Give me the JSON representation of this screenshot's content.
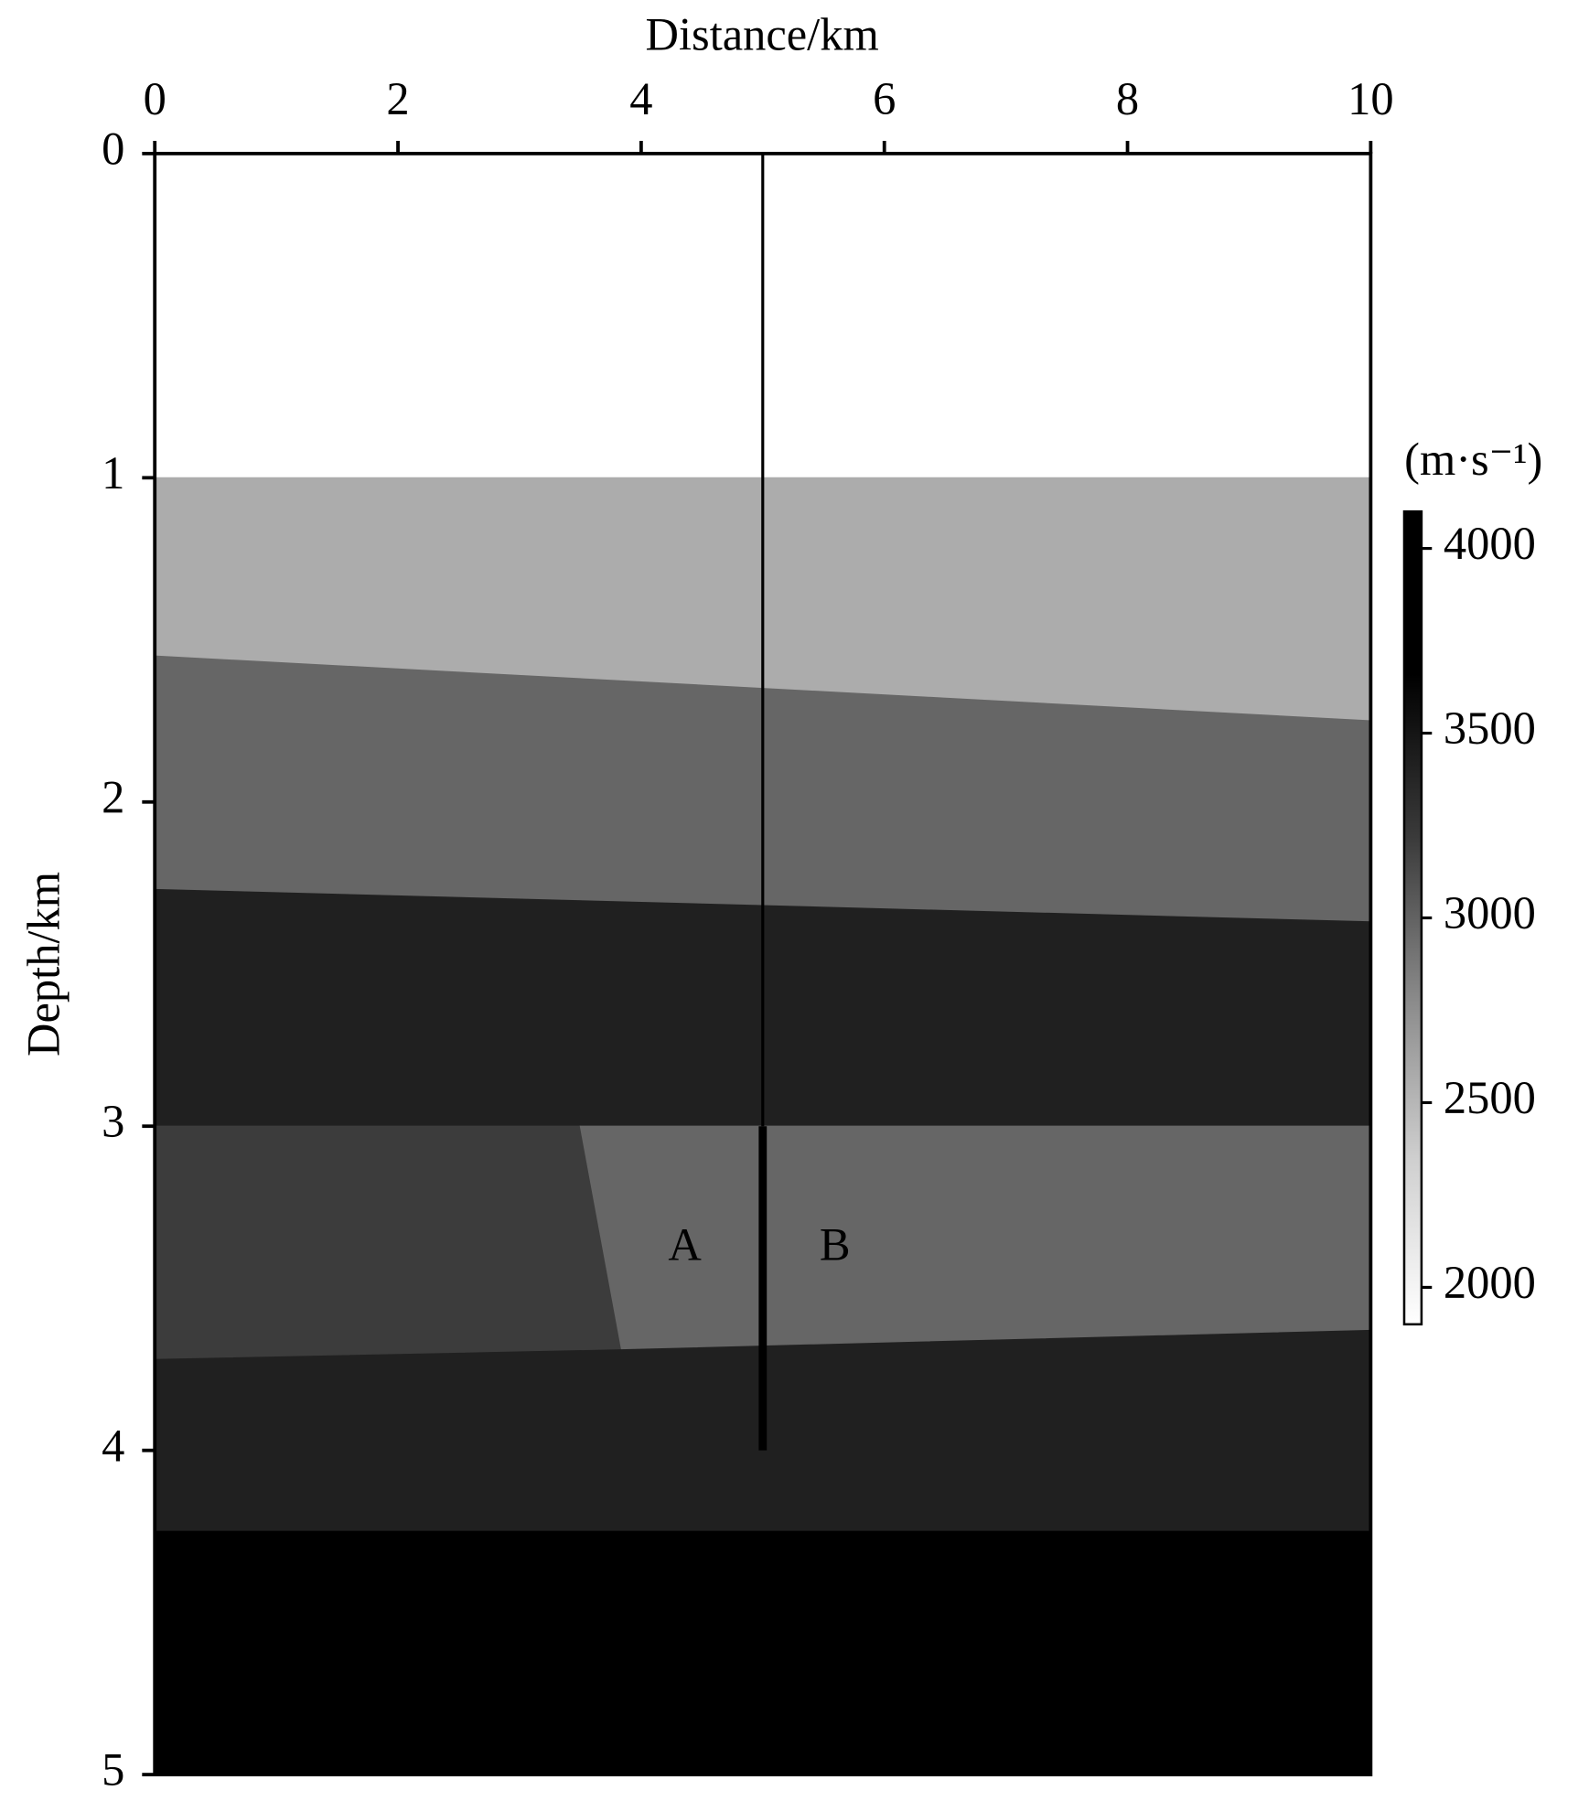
{
  "chart_data": {
    "type": "velocity-model",
    "x_label": "Distance/km",
    "y_label": "Depth/km",
    "xlim": [
      0,
      10
    ],
    "xticks": [
      0,
      2,
      4,
      6,
      8,
      10
    ],
    "ylim": [
      5,
      0
    ],
    "yticks": [
      0,
      1,
      2,
      3,
      4,
      5
    ],
    "layers": [
      {
        "velocity": 2000,
        "color": "#ffffff",
        "outline": [
          [
            0,
            0
          ],
          [
            10,
            0
          ],
          [
            10,
            1
          ],
          [
            0,
            1
          ]
        ]
      },
      {
        "velocity": 2600,
        "color": "#acacac",
        "outline": [
          [
            0,
            1
          ],
          [
            10,
            1
          ],
          [
            10,
            1.75
          ],
          [
            0,
            1.55
          ]
        ]
      },
      {
        "velocity": 3000,
        "color": "#666666",
        "outline": [
          [
            0,
            1.55
          ],
          [
            10,
            1.75
          ],
          [
            10,
            2.37
          ],
          [
            0,
            2.27
          ]
        ]
      },
      {
        "velocity": 3500,
        "color": "#202020",
        "outline": [
          [
            0,
            2.27
          ],
          [
            10,
            2.37
          ],
          [
            10,
            3
          ],
          [
            0,
            3
          ]
        ]
      },
      {
        "velocity": 3200,
        "color": "#3c3c3c",
        "outline": [
          [
            0,
            3
          ],
          [
            3.5,
            3
          ],
          [
            3.84,
            3.69
          ],
          [
            0,
            3.72
          ]
        ]
      },
      {
        "velocity": 3000,
        "color": "#666666",
        "outline": [
          [
            3.5,
            3
          ],
          [
            10,
            3
          ],
          [
            10,
            3.63
          ],
          [
            3.84,
            3.69
          ]
        ]
      },
      {
        "velocity": 3500,
        "color": "#202020",
        "outline": [
          [
            0,
            3.72
          ],
          [
            3.84,
            3.69
          ],
          [
            10,
            3.63
          ],
          [
            10,
            4.25
          ],
          [
            0,
            4.25
          ]
        ]
      },
      {
        "velocity": 4000,
        "color": "#000000",
        "outline": [
          [
            0,
            4.25
          ],
          [
            10,
            4.25
          ],
          [
            10,
            5
          ],
          [
            0,
            5
          ]
        ]
      }
    ],
    "well": {
      "x": 5,
      "top": 0,
      "thick_top": 3,
      "bottom": 4,
      "color": "#000000"
    },
    "annotations": [
      "A",
      "B"
    ],
    "colorbar": {
      "label": "(m·s⁻¹)",
      "clim": [
        1900,
        4100
      ],
      "ticks": [
        2000,
        2500,
        3000,
        3500,
        4000
      ],
      "colormap": [
        "#ffffff",
        "#d0d0d0",
        "#8a8a8a",
        "#3a3a3a",
        "#000000",
        "#000000"
      ]
    }
  }
}
